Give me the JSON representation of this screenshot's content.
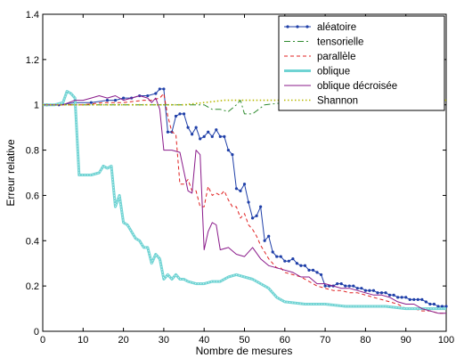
{
  "chart_data": {
    "type": "line",
    "xlabel": "Nombre de mesures",
    "ylabel": "Erreur relative",
    "xlim": [
      0,
      100
    ],
    "ylim": [
      0,
      1.4
    ],
    "xticks": [
      0,
      10,
      20,
      30,
      40,
      50,
      60,
      70,
      80,
      90,
      100
    ],
    "yticks": [
      0,
      0.2,
      0.4,
      0.6,
      0.8,
      1,
      1.2,
      1.4
    ],
    "xtick_labels": [
      "0",
      "10",
      "20",
      "30",
      "40",
      "50",
      "60",
      "70",
      "80",
      "90",
      "100"
    ],
    "ytick_labels": [
      "0",
      "0.2",
      "0.4",
      "0.6",
      "0.8",
      "1",
      "1.2",
      "1.4"
    ],
    "grid": false,
    "legend_position": "top-right",
    "series": [
      {
        "name": "aléatoire",
        "color": "#1f3fa8",
        "style": "solid-dots",
        "x": [
          1,
          4,
          8,
          12,
          16,
          18,
          20,
          22,
          24,
          26,
          28,
          29,
          30,
          31,
          32,
          33,
          34,
          35,
          36,
          37,
          38,
          39,
          40,
          41,
          42,
          43,
          44,
          45,
          46,
          47,
          48,
          49,
          50,
          51,
          52,
          53,
          54,
          55,
          56,
          57,
          58,
          59,
          60,
          61,
          62,
          63,
          64,
          65,
          66,
          67,
          68,
          69,
          70,
          71,
          72,
          73,
          74,
          75,
          76,
          77,
          78,
          79,
          80,
          81,
          82,
          83,
          84,
          85,
          86,
          87,
          88,
          89,
          90,
          91,
          92,
          93,
          94,
          95,
          96,
          97,
          98,
          99,
          100
        ],
        "y": [
          1.0,
          1.0,
          1.01,
          1.01,
          1.02,
          1.02,
          1.03,
          1.03,
          1.04,
          1.04,
          1.05,
          1.07,
          1.07,
          0.88,
          0.88,
          0.95,
          0.96,
          0.96,
          0.9,
          0.87,
          0.9,
          0.85,
          0.86,
          0.88,
          0.86,
          0.89,
          0.86,
          0.86,
          0.8,
          0.78,
          0.63,
          0.62,
          0.65,
          0.57,
          0.5,
          0.51,
          0.55,
          0.4,
          0.42,
          0.35,
          0.33,
          0.33,
          0.31,
          0.31,
          0.32,
          0.3,
          0.29,
          0.29,
          0.27,
          0.27,
          0.26,
          0.25,
          0.2,
          0.2,
          0.2,
          0.21,
          0.21,
          0.2,
          0.2,
          0.2,
          0.19,
          0.19,
          0.18,
          0.18,
          0.18,
          0.17,
          0.17,
          0.17,
          0.16,
          0.16,
          0.15,
          0.15,
          0.15,
          0.14,
          0.14,
          0.14,
          0.14,
          0.13,
          0.12,
          0.12,
          0.11,
          0.11,
          0.11
        ]
      },
      {
        "name": "tensorielle",
        "color": "#2e8b2e",
        "style": "dashdot",
        "x": [
          0,
          10,
          20,
          30,
          35,
          40,
          42,
          44,
          46,
          48,
          49,
          50,
          52,
          55,
          60,
          70,
          80,
          90,
          100
        ],
        "y": [
          1.0,
          1.0,
          1.0,
          1.0,
          1.0,
          1.0,
          0.98,
          0.98,
          0.97,
          1.0,
          1.02,
          0.96,
          0.96,
          1.0,
          1.01,
          1.01,
          1.01,
          1.01,
          1.01
        ]
      },
      {
        "name": "parallèle",
        "color": "#e02020",
        "style": "dashed",
        "x": [
          0,
          5,
          10,
          15,
          20,
          25,
          27,
          29,
          30,
          31,
          32,
          33,
          34,
          35,
          36,
          37,
          38,
          39,
          40,
          41,
          42,
          43,
          44,
          45,
          46,
          47,
          48,
          49,
          50,
          51,
          52,
          53,
          54,
          55,
          56,
          57,
          58,
          59,
          60,
          62,
          64,
          66,
          68,
          70,
          72,
          74,
          76,
          78,
          80,
          82,
          84,
          86,
          88,
          90,
          92,
          94,
          96,
          98,
          100
        ],
        "y": [
          1.0,
          1.0,
          1.0,
          1.01,
          1.01,
          1.02,
          1.02,
          1.03,
          1.05,
          0.95,
          0.88,
          0.87,
          0.65,
          0.65,
          0.67,
          0.62,
          0.62,
          0.55,
          0.55,
          0.64,
          0.6,
          0.61,
          0.6,
          0.62,
          0.58,
          0.55,
          0.55,
          0.5,
          0.52,
          0.47,
          0.45,
          0.42,
          0.38,
          0.35,
          0.32,
          0.3,
          0.28,
          0.28,
          0.26,
          0.25,
          0.24,
          0.22,
          0.2,
          0.19,
          0.18,
          0.18,
          0.17,
          0.17,
          0.16,
          0.15,
          0.14,
          0.13,
          0.12,
          0.1,
          0.1,
          0.09,
          0.09,
          0.08,
          0.08
        ]
      },
      {
        "name": "oblique",
        "color": "#6fd3d3",
        "style": "thick-dots",
        "x": [
          0,
          3,
          5,
          6,
          7,
          8,
          9,
          10,
          12,
          14,
          15,
          16,
          17,
          18,
          19,
          20,
          21,
          22,
          23,
          24,
          25,
          26,
          27,
          28,
          29,
          30,
          31,
          32,
          33,
          34,
          35,
          36,
          38,
          40,
          42,
          44,
          46,
          48,
          50,
          52,
          54,
          56,
          58,
          60,
          65,
          70,
          75,
          80,
          85,
          90,
          95,
          100
        ],
        "y": [
          1.0,
          1.0,
          1.01,
          1.06,
          1.05,
          1.03,
          0.69,
          0.69,
          0.69,
          0.7,
          0.73,
          0.72,
          0.73,
          0.55,
          0.6,
          0.48,
          0.47,
          0.44,
          0.41,
          0.4,
          0.37,
          0.37,
          0.3,
          0.34,
          0.32,
          0.23,
          0.25,
          0.23,
          0.25,
          0.23,
          0.23,
          0.22,
          0.21,
          0.21,
          0.22,
          0.22,
          0.24,
          0.25,
          0.24,
          0.23,
          0.21,
          0.19,
          0.15,
          0.13,
          0.12,
          0.12,
          0.11,
          0.11,
          0.11,
          0.1,
          0.1,
          0.1
        ]
      },
      {
        "name": "oblique décroisée",
        "color": "#8a1a8a",
        "style": "solid",
        "x": [
          0,
          5,
          8,
          10,
          12,
          14,
          16,
          18,
          20,
          22,
          24,
          26,
          27,
          28,
          29,
          30,
          32,
          34,
          36,
          37,
          38,
          39,
          40,
          41,
          42,
          43,
          44,
          46,
          48,
          50,
          52,
          54,
          56,
          58,
          60,
          62,
          64,
          66,
          68,
          70,
          72,
          74,
          76,
          78,
          80,
          82,
          84,
          86,
          88,
          90,
          92,
          94,
          96,
          98,
          100
        ],
        "y": [
          1.0,
          1.0,
          1.02,
          1.02,
          1.03,
          1.04,
          1.03,
          1.04,
          1.02,
          1.03,
          1.04,
          1.03,
          1.01,
          1.03,
          0.98,
          0.8,
          0.8,
          0.79,
          0.62,
          0.61,
          0.8,
          0.78,
          0.36,
          0.44,
          0.48,
          0.47,
          0.36,
          0.37,
          0.34,
          0.33,
          0.37,
          0.32,
          0.29,
          0.28,
          0.27,
          0.26,
          0.24,
          0.24,
          0.21,
          0.21,
          0.2,
          0.19,
          0.19,
          0.18,
          0.17,
          0.16,
          0.16,
          0.15,
          0.13,
          0.12,
          0.12,
          0.1,
          0.09,
          0.08,
          0.08
        ]
      },
      {
        "name": "Shannon",
        "color": "#b8b800",
        "style": "dotted",
        "x": [
          0,
          10,
          20,
          30,
          35,
          40,
          45,
          50,
          55,
          60,
          70,
          80,
          90,
          100
        ],
        "y": [
          1.0,
          1.0,
          1.0,
          1.0,
          1.0,
          1.01,
          1.02,
          1.02,
          1.02,
          1.02,
          1.02,
          1.02,
          1.02,
          1.02
        ]
      }
    ]
  }
}
